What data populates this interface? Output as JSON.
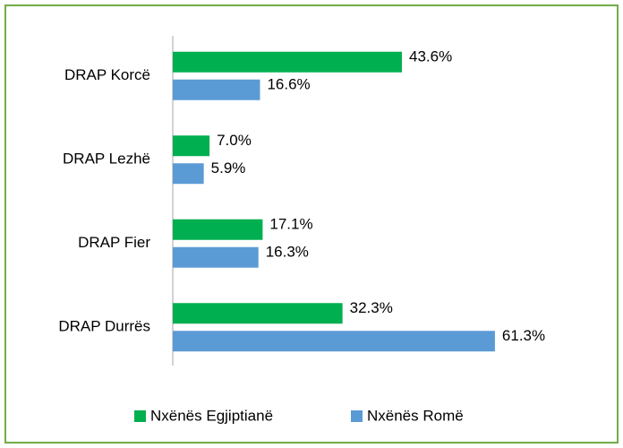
{
  "chart_data": {
    "type": "bar",
    "orientation": "horizontal",
    "categories": [
      "DRAP Korcë",
      "DRAP Lezhë",
      "DRAP Fier",
      "DRAP Durrës"
    ],
    "series": [
      {
        "name": "Nxënës Egjiptianë",
        "color": "#00b050",
        "values": [
          43.6,
          7.0,
          17.1,
          32.3
        ],
        "value_labels": [
          "43.6%",
          "7.0%",
          "17.1%",
          "32.3%"
        ]
      },
      {
        "name": "Nxënës Romë",
        "color": "#5b9bd5",
        "values": [
          16.6,
          5.9,
          16.3,
          61.3
        ],
        "value_labels": [
          "16.6%",
          "5.9%",
          "16.3%",
          "61.3%"
        ]
      }
    ],
    "xlim": [
      0,
      70
    ],
    "legend": "bottom"
  }
}
